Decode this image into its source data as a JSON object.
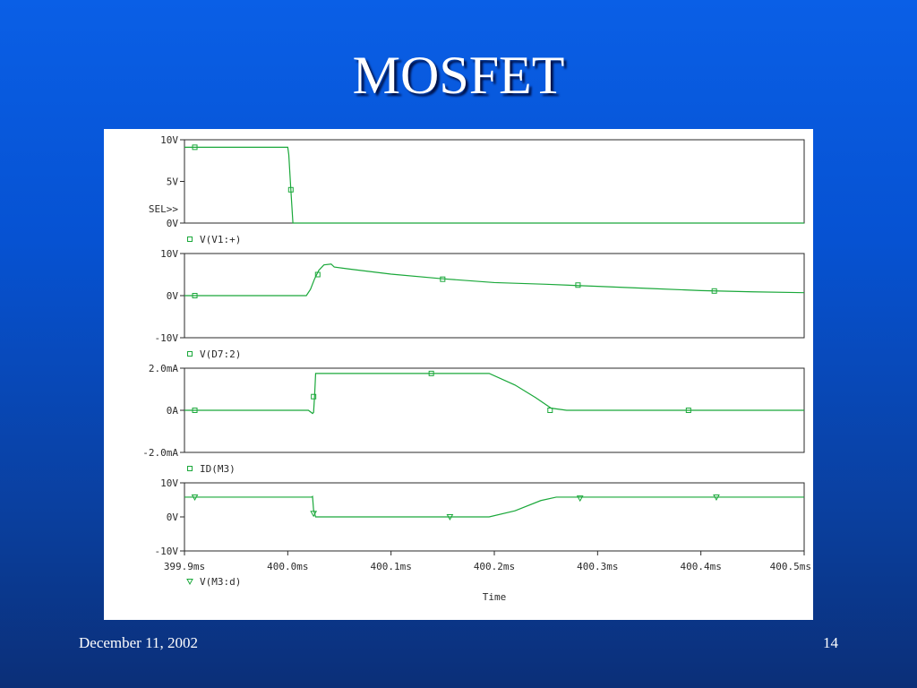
{
  "slide": {
    "title": "MOSFET",
    "footer_date": "December 11, 2002",
    "page_number": "14"
  },
  "colors": {
    "background_top": "#0a5fe6",
    "background_bottom": "#0b2f78",
    "trace": "#1aa83a",
    "axis": "#2a2a2a"
  },
  "chart_data": {
    "type": "line",
    "xlabel": "Time",
    "x_unit": "ms",
    "xlim": [
      399.9,
      400.5
    ],
    "x_ticks": [
      399.9,
      400.0,
      400.1,
      400.2,
      400.3,
      400.4,
      400.5
    ],
    "x_tick_labels": [
      "399.9ms",
      "400.0ms",
      "400.1ms",
      "400.2ms",
      "400.3ms",
      "400.4ms",
      "400.5ms"
    ],
    "grid": false,
    "panels": [
      {
        "series_name": "V(V1:+)",
        "marker": "square",
        "ylim": [
          0,
          10
        ],
        "y_ticks": [
          0,
          5,
          10
        ],
        "y_tick_labels": [
          "0V",
          "5V",
          "10V"
        ],
        "selected_label": "SEL>>",
        "points": [
          [
            399.9,
            9.1
          ],
          [
            400.0,
            9.1
          ],
          [
            400.001,
            8.2
          ],
          [
            400.003,
            4.0
          ],
          [
            400.005,
            0.0
          ],
          [
            400.5,
            0.0
          ]
        ],
        "marker_points": [
          [
            399.91,
            9.1
          ],
          [
            400.003,
            4.0
          ]
        ]
      },
      {
        "series_name": "V(D7:2)",
        "marker": "square",
        "ylim": [
          -10,
          10
        ],
        "y_ticks": [
          -10,
          0,
          10
        ],
        "y_tick_labels": [
          "-10V",
          "0V",
          "10V"
        ],
        "points": [
          [
            399.9,
            0.0
          ],
          [
            400.018,
            0.0
          ],
          [
            400.022,
            1.5
          ],
          [
            400.026,
            4.0
          ],
          [
            400.03,
            6.0
          ],
          [
            400.035,
            7.3
          ],
          [
            400.042,
            7.5
          ],
          [
            400.045,
            6.8
          ],
          [
            400.06,
            6.3
          ],
          [
            400.1,
            5.1
          ],
          [
            400.15,
            4.0
          ],
          [
            400.2,
            3.1
          ],
          [
            400.25,
            2.7
          ],
          [
            400.3,
            2.2
          ],
          [
            400.35,
            1.7
          ],
          [
            400.4,
            1.2
          ],
          [
            400.45,
            0.9
          ],
          [
            400.5,
            0.7
          ]
        ],
        "marker_points": [
          [
            399.91,
            0.0
          ],
          [
            400.029,
            5.0
          ],
          [
            400.15,
            3.9
          ],
          [
            400.281,
            2.5
          ],
          [
            400.413,
            1.1
          ]
        ]
      },
      {
        "series_name": "ID(M3)",
        "marker": "square",
        "ylim": [
          -2.0,
          2.0
        ],
        "y_ticks": [
          -2.0,
          0.0,
          2.0
        ],
        "y_tick_labels": [
          "-2.0mA",
          "0A",
          "2.0mA"
        ],
        "points": [
          [
            399.9,
            0.0
          ],
          [
            400.02,
            0.0
          ],
          [
            400.024,
            -0.15
          ],
          [
            400.025,
            -0.1
          ],
          [
            400.026,
            0.7
          ],
          [
            400.027,
            1.75
          ],
          [
            400.195,
            1.75
          ],
          [
            400.22,
            1.2
          ],
          [
            400.24,
            0.6
          ],
          [
            400.255,
            0.1
          ],
          [
            400.27,
            0.0
          ],
          [
            400.5,
            0.0
          ]
        ],
        "marker_points": [
          [
            399.91,
            0.0
          ],
          [
            400.025,
            0.65
          ],
          [
            400.139,
            1.75
          ],
          [
            400.254,
            0.0
          ],
          [
            400.388,
            0.0
          ]
        ]
      },
      {
        "series_name": "V(M3:d)",
        "marker": "triangle",
        "ylim": [
          -10,
          10
        ],
        "y_ticks": [
          -10,
          0,
          10
        ],
        "y_tick_labels": [
          "-10V",
          "0V",
          "10V"
        ],
        "points": [
          [
            399.9,
            5.8
          ],
          [
            400.023,
            5.8
          ],
          [
            400.024,
            6.0
          ],
          [
            400.025,
            2.0
          ],
          [
            400.027,
            0.0
          ],
          [
            400.195,
            0.0
          ],
          [
            400.22,
            1.8
          ],
          [
            400.245,
            4.8
          ],
          [
            400.26,
            5.8
          ],
          [
            400.5,
            5.8
          ]
        ],
        "marker_points": [
          [
            399.91,
            5.8
          ],
          [
            400.025,
            1.0
          ],
          [
            400.157,
            0.0
          ],
          [
            400.283,
            5.5
          ],
          [
            400.415,
            5.8
          ]
        ]
      }
    ]
  }
}
